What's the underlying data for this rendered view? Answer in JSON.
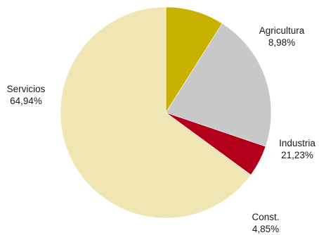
{
  "chart_data": {
    "type": "pie",
    "title": "",
    "start": "12 o'clock, clockwise",
    "slices": [
      {
        "label": "Agricultura",
        "value": 8.98,
        "display": "8,98%",
        "color": "#c9b100"
      },
      {
        "label": "Industria",
        "value": 21.23,
        "display": "21,23%",
        "color": "#c8c8c8"
      },
      {
        "label": "Const.",
        "value": 4.85,
        "display": "4,85%",
        "color": "#b2001b"
      },
      {
        "label": "Servicios",
        "value": 64.94,
        "display": "64,94%",
        "color": "#efe6b4"
      }
    ]
  }
}
